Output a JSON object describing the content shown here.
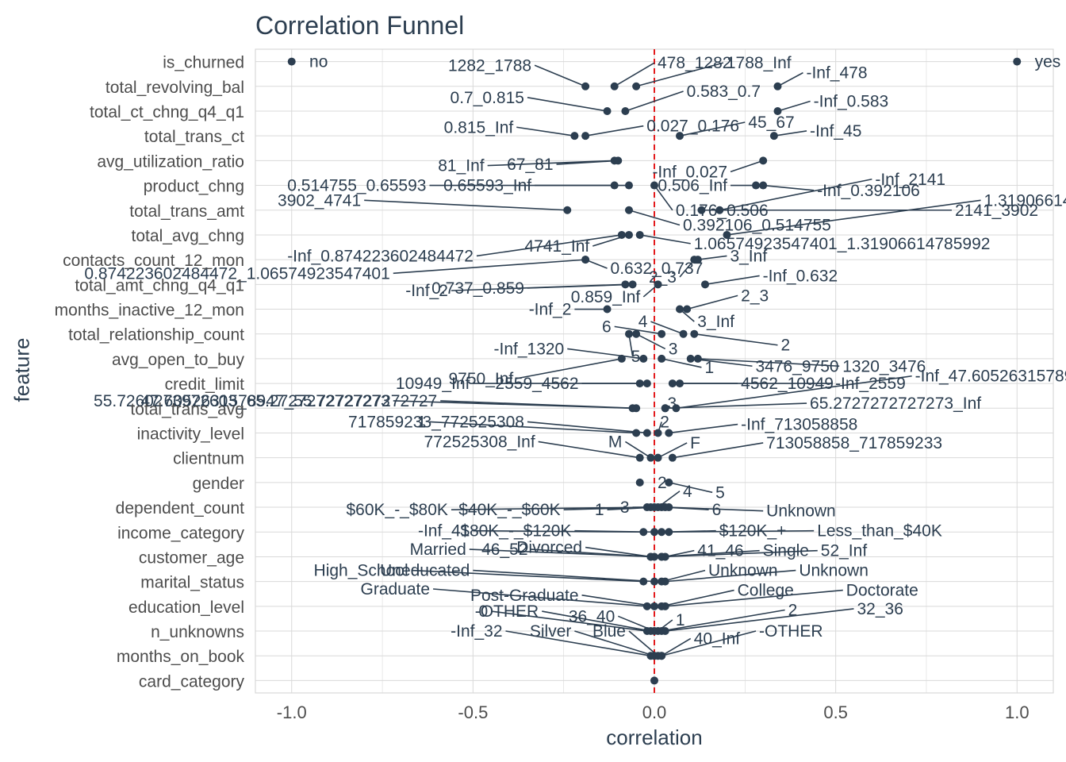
{
  "chart_data": {
    "type": "scatter",
    "title": "Correlation Funnel",
    "xlabel": "correlation",
    "ylabel": "feature",
    "xlim": [
      -1.1,
      1.1
    ],
    "x_ticks": [
      "-1.0",
      "-0.5",
      "0.0",
      "0.5",
      "1.0"
    ],
    "x_tick_values": [
      -1.0,
      -0.5,
      0.0,
      0.5,
      1.0
    ],
    "grid": true,
    "reference_line": {
      "x": 0,
      "style": "dashed",
      "color": "#e31a1c"
    },
    "colors": {
      "text": "#2c3e50",
      "points": "#2c3e50",
      "grid": "#d9d9d9",
      "reference": "#e31a1c"
    },
    "features": [
      "is_churned",
      "total_revolving_bal",
      "total_ct_chng_q4_q1",
      "total_trans_ct",
      "avg_utilization_ratio",
      "product_chng",
      "total_trans_amt",
      "total_avg_chng",
      "contacts_count_12_mon",
      "total_amt_chng_q4_q1",
      "months_inactive_12_mon",
      "total_relationship_count",
      "avg_open_to_buy",
      "credit_limit",
      "total_trans_avg",
      "inactivity_level",
      "clientnum",
      "gender",
      "dependent_count",
      "income_category",
      "customer_age",
      "marital_status",
      "education_level",
      "n_unknowns",
      "months_on_book",
      "card_category"
    ],
    "points": [
      {
        "f": "is_churned",
        "x": -1.0,
        "label": "no",
        "lx": -0.96,
        "dy": 0
      },
      {
        "f": "is_churned",
        "x": 1.0,
        "label": "yes",
        "lx": 1.04,
        "dy": 0
      },
      {
        "f": "total_revolving_bal",
        "x": -0.19,
        "label": "1282_1788",
        "lx": -0.33,
        "dy": -0.85
      },
      {
        "f": "total_revolving_bal",
        "x": -0.11,
        "label": "478_1282",
        "lx": 0.0,
        "dy": -0.95
      },
      {
        "f": "total_revolving_bal",
        "x": -0.05,
        "label": "1788_Inf",
        "lx": 0.19,
        "dy": -0.95
      },
      {
        "f": "total_revolving_bal",
        "x": 0.34,
        "label": "-Inf_478",
        "lx": 0.41,
        "dy": -0.55
      },
      {
        "f": "total_ct_chng_q4_q1",
        "x": -0.13,
        "label": "0.7_0.815",
        "lx": -0.35,
        "dy": -0.55
      },
      {
        "f": "total_ct_chng_q4_q1",
        "x": -0.08,
        "label": "0.583_0.7",
        "lx": 0.08,
        "dy": -0.8
      },
      {
        "f": "total_ct_chng_q4_q1",
        "x": 0.34,
        "label": "-Inf_0.583",
        "lx": 0.43,
        "dy": -0.4
      },
      {
        "f": "total_trans_ct",
        "x": -0.22,
        "label": "0.815_Inf",
        "lx": -0.38,
        "dy": -0.35
      },
      {
        "f": "total_trans_ct",
        "x": -0.19,
        "label": "0.027_0.176",
        "lx": -0.03,
        "dy": -0.4
      },
      {
        "f": "total_trans_ct",
        "x": 0.07,
        "label": "45_67",
        "lx": 0.25,
        "dy": -0.55
      },
      {
        "f": "total_trans_ct",
        "x": 0.33,
        "label": "-Inf_45",
        "lx": 0.42,
        "dy": -0.2
      },
      {
        "f": "avg_utilization_ratio",
        "x": -0.11,
        "label": "81_Inf",
        "lx": -0.46,
        "dy": 0.2
      },
      {
        "f": "avg_utilization_ratio",
        "x": -0.1,
        "label": "67_81",
        "lx": -0.27,
        "dy": 0.15
      },
      {
        "f": "avg_utilization_ratio",
        "x": 0.3,
        "label": "-Inf_0.027",
        "lx": 0.21,
        "dy": 0.45
      },
      {
        "f": "product_chng",
        "x": -0.11,
        "label": "0.514755_0.65593",
        "lx": -0.62,
        "dy": 0
      },
      {
        "f": "product_chng",
        "x": -0.07,
        "label": "0.65593_Inf",
        "lx": -0.33,
        "dy": 0
      },
      {
        "f": "product_chng",
        "x": 0.3,
        "label": "-Inf_0.392106",
        "lx": 0.44,
        "dy": 0.2
      },
      {
        "f": "product_chng",
        "x": 0.0,
        "label": "0.176_0.506",
        "lx": 0.05,
        "dy": 1.0
      },
      {
        "f": "product_chng",
        "x": 0.28,
        "label": "0.506_Inf",
        "lx": 0.21,
        "dy": 0
      },
      {
        "f": "total_trans_amt",
        "x": -0.24,
        "label": "3902_4741",
        "lx": -0.8,
        "dy": -0.4
      },
      {
        "f": "total_trans_amt",
        "x": -0.07,
        "label": "0.392106_0.514755",
        "lx": 0.07,
        "dy": 0.6
      },
      {
        "f": "total_trans_amt",
        "x": 0.13,
        "label": "2141_3902",
        "lx": 0.82,
        "dy": 0
      },
      {
        "f": "total_trans_amt",
        "x": 0.18,
        "label": "-Inf_2141",
        "lx": 0.6,
        "dy": -1.25
      },
      {
        "f": "total_avg_chng",
        "x": -0.09,
        "label": "-Inf_0.874223602484472",
        "lx": -0.49,
        "dy": 0.85
      },
      {
        "f": "total_avg_chng",
        "x": -0.04,
        "label": "1.06574923547401_1.31906614785992",
        "lx": 0.1,
        "dy": 0.35
      },
      {
        "f": "total_avg_chng",
        "x": -0.07,
        "label": "4741_Inf",
        "lx": -0.17,
        "dy": 0.45
      },
      {
        "f": "total_avg_chng",
        "x": 0.2,
        "label": "1.31906614785992_Inf",
        "lx": 0.9,
        "dy": -1.4
      },
      {
        "f": "contacts_count_12_mon",
        "x": -0.19,
        "label": "0.874223602484472_1.06574923547401",
        "lx": -0.72,
        "dy": 0.55
      },
      {
        "f": "contacts_count_12_mon",
        "x": 0.11,
        "label": "2_3",
        "lx": 0.07,
        "dy": 0.7
      },
      {
        "f": "contacts_count_12_mon",
        "x": 0.12,
        "label": "3_Inf",
        "lx": 0.2,
        "dy": -0.15
      },
      {
        "f": "contacts_count_12_mon",
        "x": -0.19,
        "label": "0.632_0.737",
        "lx": -0.13,
        "dy": 0.35
      },
      {
        "f": "total_amt_chng_q4_q1",
        "x": -0.08,
        "label": "-Inf_2",
        "lx": -0.56,
        "dy": 0.25
      },
      {
        "f": "total_amt_chng_q4_q1",
        "x": -0.06,
        "label": "0.737_0.859",
        "lx": -0.35,
        "dy": 0.15
      },
      {
        "f": "total_amt_chng_q4_q1",
        "x": 0.01,
        "label": "0.859_Inf",
        "lx": -0.03,
        "dy": 0.5
      },
      {
        "f": "total_amt_chng_q4_q1",
        "x": 0.14,
        "label": "-Inf_0.632",
        "lx": 0.29,
        "dy": -0.35
      },
      {
        "f": "months_inactive_12_mon",
        "x": -0.13,
        "label": "-Inf_2",
        "lx": -0.22,
        "dy": 0
      },
      {
        "f": "months_inactive_12_mon",
        "x": 0.07,
        "label": "3_Inf",
        "lx": 0.11,
        "dy": 0.5
      },
      {
        "f": "months_inactive_12_mon",
        "x": 0.09,
        "label": "2_3",
        "lx": 0.23,
        "dy": -0.55
      },
      {
        "f": "total_relationship_count",
        "x": -0.07,
        "label": "5",
        "lx": -0.06,
        "dy": 0.9
      },
      {
        "f": "total_relationship_count",
        "x": -0.05,
        "label": "3",
        "lx": 0.03,
        "dy": 0.6
      },
      {
        "f": "total_relationship_count",
        "x": 0.02,
        "label": "6",
        "lx": -0.11,
        "dy": -0.3
      },
      {
        "f": "total_relationship_count",
        "x": 0.08,
        "label": "4",
        "lx": -0.01,
        "dy": -0.5
      },
      {
        "f": "total_relationship_count",
        "x": 0.11,
        "label": "2",
        "lx": 0.34,
        "dy": 0.45
      },
      {
        "f": "avg_open_to_buy",
        "x": -0.09,
        "label": "9750_Inf",
        "lx": -0.38,
        "dy": 0.8
      },
      {
        "f": "avg_open_to_buy",
        "x": -0.03,
        "label": "-Inf_1320",
        "lx": -0.24,
        "dy": -0.4
      },
      {
        "f": "avg_open_to_buy",
        "x": 0.02,
        "label": "1",
        "lx": 0.13,
        "dy": 0.35
      },
      {
        "f": "avg_open_to_buy",
        "x": 0.1,
        "label": "3476_9750",
        "lx": 0.27,
        "dy": 0.3
      },
      {
        "f": "avg_open_to_buy",
        "x": 0.12,
        "label": "1320_3476",
        "lx": 0.51,
        "dy": 0.3
      },
      {
        "f": "credit_limit",
        "x": -0.04,
        "label": "10949_Inf",
        "lx": -0.5,
        "dy": 0
      },
      {
        "f": "credit_limit",
        "x": 0.07,
        "label": "4562_10949",
        "lx": 0.23,
        "dy": 0
      },
      {
        "f": "credit_limit",
        "x": 0.05,
        "label": "-Inf_2559",
        "lx": 0.49,
        "dy": 0
      },
      {
        "f": "credit_limit",
        "x": -0.02,
        "label": "2559_4562",
        "lx": -0.2,
        "dy": 0
      },
      {
        "f": "total_trans_avg",
        "x": -0.05,
        "label": "47.6052631578947_55.7272727272727",
        "lx": -0.59,
        "dy": -0.3
      },
      {
        "f": "total_trans_avg",
        "x": 0.03,
        "label": "3",
        "lx": 0.04,
        "dy": -0.2
      },
      {
        "f": "total_trans_avg",
        "x": 0.03,
        "label": "65.2727272727273_Inf",
        "lx": 0.42,
        "dy": -0.2
      },
      {
        "f": "total_trans_avg",
        "x": -0.06,
        "label": "55.7260273972603_65.2727272727273",
        "lx": -0.72,
        "dy": -0.3
      },
      {
        "f": "total_trans_avg",
        "x": 0.06,
        "label": "-Inf_47.6052631578947",
        "lx": 0.71,
        "dy": -1.3
      },
      {
        "f": "inactivity_level",
        "x": -0.05,
        "label": "1",
        "lx": -0.62,
        "dy": -0.45
      },
      {
        "f": "inactivity_level",
        "x": -0.02,
        "label": "717859233_772525308",
        "lx": -0.35,
        "dy": -0.45
      },
      {
        "f": "inactivity_level",
        "x": 0.01,
        "label": "2",
        "lx": 0.02,
        "dy": -0.45
      },
      {
        "f": "inactivity_level",
        "x": 0.04,
        "label": "-Inf_713058858",
        "lx": 0.23,
        "dy": -0.35
      },
      {
        "f": "clientnum",
        "x": -0.04,
        "label": "772525308_Inf",
        "lx": -0.32,
        "dy": -0.65
      },
      {
        "f": "clientnum",
        "x": -0.01,
        "label": "M",
        "lx": -0.08,
        "dy": -0.65
      },
      {
        "f": "clientnum",
        "x": 0.01,
        "label": "F",
        "lx": 0.09,
        "dy": -0.6
      },
      {
        "f": "clientnum",
        "x": 0.05,
        "label": "713058858_717859233",
        "lx": 0.3,
        "dy": -0.6
      },
      {
        "f": "gender",
        "x": -0.04,
        "label": "2",
        "lx": 0.0,
        "dy": 0
      },
      {
        "f": "gender",
        "x": 0.04,
        "label": "5",
        "lx": 0.16,
        "dy": 0.4
      },
      {
        "f": "dependent_count",
        "x": -0.02,
        "label": "$60K_-_$80K",
        "lx": -0.56,
        "dy": 0.1
      },
      {
        "f": "dependent_count",
        "x": -0.01,
        "label": "$40K_-_$60K",
        "lx": -0.25,
        "dy": 0.1
      },
      {
        "f": "dependent_count",
        "x": 0.0,
        "label": "1",
        "lx": -0.13,
        "dy": 0.1
      },
      {
        "f": "dependent_count",
        "x": 0.02,
        "label": "3",
        "lx": -0.06,
        "dy": 0
      },
      {
        "f": "dependent_count",
        "x": 0.03,
        "label": "6",
        "lx": 0.15,
        "dy": 0.1
      },
      {
        "f": "dependent_count",
        "x": 0.01,
        "label": "4",
        "lx": 0.07,
        "dy": -0.65
      },
      {
        "f": "dependent_count",
        "x": 0.04,
        "label": "Unknown",
        "lx": 0.3,
        "dy": 0.15
      },
      {
        "f": "income_category",
        "x": -0.03,
        "label": "-Inf_41",
        "lx": -0.5,
        "dy": -0.05
      },
      {
        "f": "income_category",
        "x": 0.0,
        "label": "$80K_-_$120K",
        "lx": -0.22,
        "dy": -0.05
      },
      {
        "f": "income_category",
        "x": 0.02,
        "label": "$120K_+",
        "lx": 0.17,
        "dy": -0.05
      },
      {
        "f": "income_category",
        "x": 0.04,
        "label": "Less_than_$40K",
        "lx": 0.44,
        "dy": -0.05
      },
      {
        "f": "customer_age",
        "x": 0.0,
        "label": "Married",
        "lx": -0.51,
        "dy": -0.3
      },
      {
        "f": "customer_age",
        "x": -0.01,
        "label": "46_52",
        "lx": -0.34,
        "dy": -0.3
      },
      {
        "f": "customer_age",
        "x": -0.01,
        "label": "Divorced",
        "lx": -0.19,
        "dy": -0.38
      },
      {
        "f": "customer_age",
        "x": 0.03,
        "label": "41_46",
        "lx": 0.11,
        "dy": -0.25
      },
      {
        "f": "customer_age",
        "x": 0.02,
        "label": "Single",
        "lx": 0.29,
        "dy": -0.25
      },
      {
        "f": "customer_age",
        "x": 0.02,
        "label": "52_Inf",
        "lx": 0.45,
        "dy": -0.25
      },
      {
        "f": "marital_status",
        "x": -0.03,
        "label": "High_School",
        "lx": -0.67,
        "dy": -0.45
      },
      {
        "f": "marital_status",
        "x": 0.0,
        "label": "Uneducated",
        "lx": -0.5,
        "dy": -0.45
      },
      {
        "f": "marital_status",
        "x": 0.02,
        "label": "Unknown",
        "lx": 0.14,
        "dy": -0.45
      },
      {
        "f": "marital_status",
        "x": 0.03,
        "label": "Unknown",
        "lx": 0.39,
        "dy": -0.45
      },
      {
        "f": "education_level",
        "x": -0.02,
        "label": "Graduate",
        "lx": -0.61,
        "dy": -0.7
      },
      {
        "f": "education_level",
        "x": 0.0,
        "label": "Post-Graduate",
        "lx": -0.2,
        "dy": -0.45
      },
      {
        "f": "education_level",
        "x": 0.02,
        "label": "College",
        "lx": 0.22,
        "dy": -0.65
      },
      {
        "f": "education_level",
        "x": 0.03,
        "label": "Doctorate",
        "lx": 0.52,
        "dy": -0.65
      },
      {
        "f": "n_unknowns",
        "x": -0.02,
        "label": "0",
        "lx": -0.45,
        "dy": -0.8
      },
      {
        "f": "n_unknowns",
        "x": -0.01,
        "label": "-OTHER",
        "lx": -0.31,
        "dy": -0.8
      },
      {
        "f": "n_unknowns",
        "x": 0.0,
        "label": "36_40",
        "lx": -0.1,
        "dy": -0.6
      },
      {
        "f": "n_unknowns",
        "x": 0.01,
        "label": "1",
        "lx": 0.05,
        "dy": -0.45
      },
      {
        "f": "n_unknowns",
        "x": 0.02,
        "label": "2",
        "lx": 0.36,
        "dy": -0.85
      },
      {
        "f": "n_unknowns",
        "x": 0.03,
        "label": "32_36",
        "lx": 0.55,
        "dy": -0.9
      },
      {
        "f": "months_on_book",
        "x": -0.01,
        "label": "-Inf_32",
        "lx": -0.41,
        "dy": -1.0
      },
      {
        "f": "months_on_book",
        "x": 0.0,
        "label": "Silver",
        "lx": -0.22,
        "dy": -1.0
      },
      {
        "f": "months_on_book",
        "x": 0.01,
        "label": "Blue",
        "lx": -0.07,
        "dy": -1.0
      },
      {
        "f": "months_on_book",
        "x": 0.02,
        "label": "40_Inf",
        "lx": 0.1,
        "dy": -0.7
      },
      {
        "f": "months_on_book",
        "x": 0.02,
        "label": "-OTHER",
        "lx": 0.28,
        "dy": -1.0
      },
      {
        "f": "card_category",
        "x": 0.0,
        "label": "",
        "lx": 0.0,
        "dy": 0
      }
    ]
  }
}
